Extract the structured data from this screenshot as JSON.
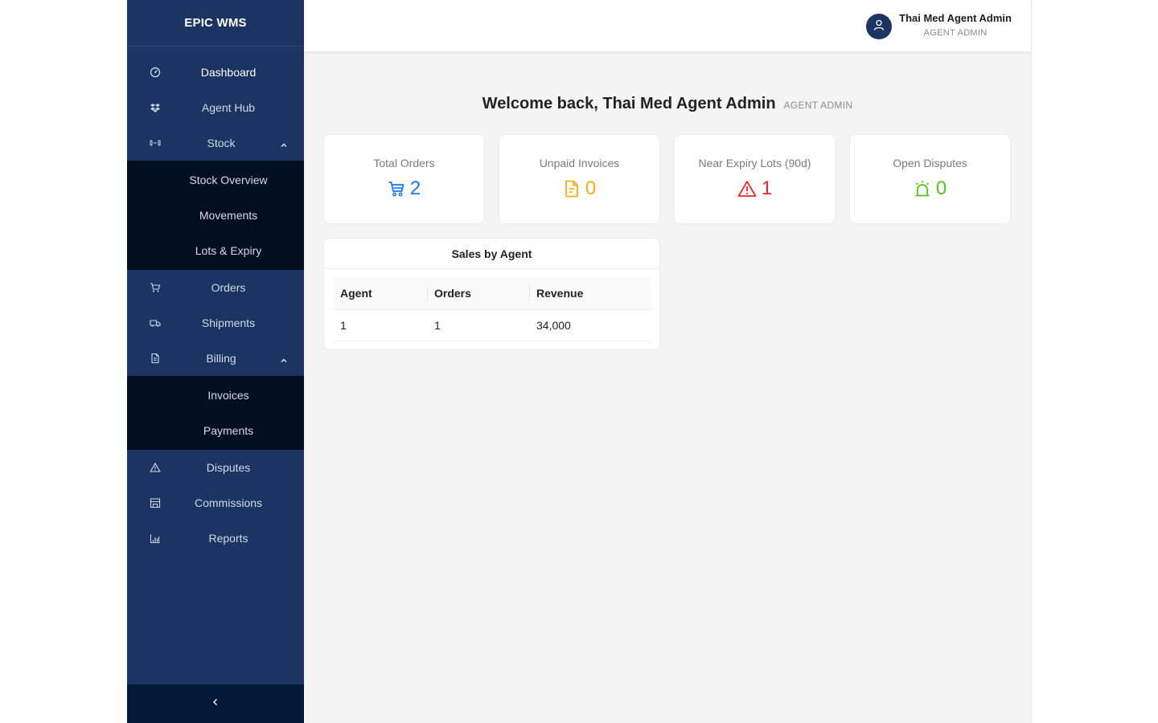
{
  "brand": "EPIC WMS",
  "sidebar": {
    "items": [
      {
        "label": "Dashboard"
      },
      {
        "label": "Agent Hub"
      },
      {
        "label": "Stock",
        "children": [
          "Stock Overview",
          "Movements",
          "Lots & Expiry"
        ]
      },
      {
        "label": "Orders"
      },
      {
        "label": "Shipments"
      },
      {
        "label": "Billing",
        "children": [
          "Invoices",
          "Payments"
        ]
      },
      {
        "label": "Disputes"
      },
      {
        "label": "Commissions"
      },
      {
        "label": "Reports"
      }
    ],
    "collapse_icon": "chevron-left-icon"
  },
  "header": {
    "user_name": "Thai Med Agent Admin",
    "user_role": "AGENT ADMIN"
  },
  "welcome": {
    "title": "Welcome back, Thai Med Agent Admin",
    "role": "AGENT ADMIN"
  },
  "stats": [
    {
      "title": "Total Orders",
      "value": "2",
      "icon": "cart-icon",
      "color": "#1677ff"
    },
    {
      "title": "Unpaid Invoices",
      "value": "0",
      "icon": "file-icon",
      "color": "#faad14"
    },
    {
      "title": "Near Expiry Lots (90d)",
      "value": "1",
      "icon": "warning-icon",
      "color": "#f5222d"
    },
    {
      "title": "Open Disputes",
      "value": "0",
      "icon": "alert-icon",
      "color": "#52c41a"
    }
  ],
  "sales_panel": {
    "title": "Sales by Agent",
    "columns": [
      "Agent",
      "Orders",
      "Revenue"
    ],
    "rows": [
      [
        "1",
        "1",
        "34,000"
      ]
    ]
  },
  "colors": {
    "sidebar": "#1b3461",
    "submenu": "#020f22",
    "background": "#f4f4f4"
  }
}
